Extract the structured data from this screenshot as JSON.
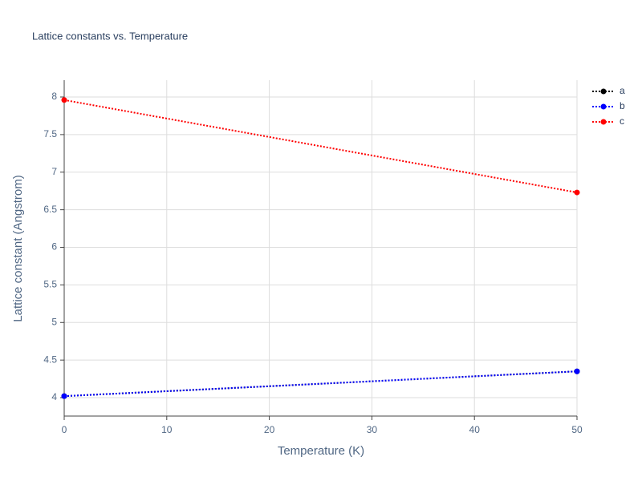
{
  "chart_data": {
    "type": "line",
    "title": "Lattice constants vs. Temperature",
    "x_label": "Temperature (K)",
    "y_label": "Lattice constant (Angstrom)",
    "x": [
      0,
      50
    ],
    "series": [
      {
        "name": "a",
        "color": "#000000",
        "values": [
          4.02,
          4.35
        ]
      },
      {
        "name": "b",
        "color": "#0000ff",
        "values": [
          4.02,
          4.35
        ]
      },
      {
        "name": "c",
        "color": "#ff0000",
        "values": [
          7.96,
          6.73
        ]
      }
    ],
    "xlim": [
      0,
      50
    ],
    "xticks": [
      0,
      10,
      20,
      30,
      40,
      50
    ],
    "ylim": [
      3.755,
      8.224
    ],
    "yticks": [
      4,
      4.5,
      5,
      5.5,
      6,
      6.5,
      7,
      7.5,
      8
    ],
    "grid": true,
    "legend": "top-right"
  }
}
